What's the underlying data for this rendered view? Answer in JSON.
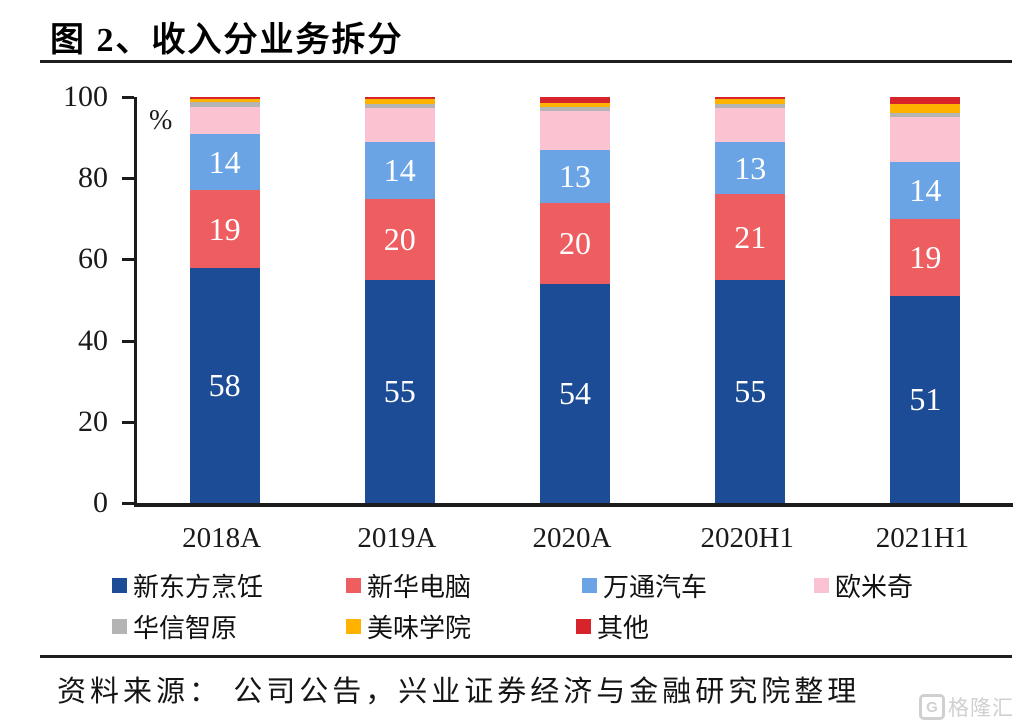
{
  "chart_data": {
    "type": "stacked-bar",
    "title": "图 2、收入分业务拆分",
    "unit_label": "%",
    "categories": [
      "2018A",
      "2019A",
      "2020A",
      "2020H1",
      "2021H1"
    ],
    "series": [
      {
        "name": "新东方烹饪",
        "color": "#1D4C96",
        "labeled": true,
        "values": [
          58,
          55,
          54,
          55,
          51
        ]
      },
      {
        "name": "新华电脑",
        "color": "#EE5D60",
        "labeled": true,
        "values": [
          19,
          20,
          20,
          21,
          19
        ]
      },
      {
        "name": "万通汽车",
        "color": "#6AA4E4",
        "labeled": true,
        "values": [
          14,
          14,
          13,
          13,
          14
        ]
      },
      {
        "name": "欧米奇",
        "color": "#FBC3D1",
        "labeled": false,
        "values": [
          6.6,
          8.3,
          9.6,
          8.3,
          11.2
        ]
      },
      {
        "name": "华信智原",
        "color": "#B4B4B4",
        "labeled": false,
        "values": [
          1.2,
          1.0,
          1.0,
          1.0,
          0.8
        ]
      },
      {
        "name": "美味学院",
        "color": "#FFB300",
        "labeled": false,
        "values": [
          0.7,
          1.2,
          1.0,
          1.2,
          2.4
        ]
      },
      {
        "name": "其他",
        "color": "#D7232A",
        "labeled": false,
        "values": [
          0.5,
          0.5,
          1.4,
          0.5,
          1.6
        ]
      }
    ],
    "ylim": [
      0,
      100
    ],
    "yticks": [
      0,
      20,
      40,
      60,
      80,
      100
    ],
    "grid": false,
    "legend_position": "bottom",
    "legend_rows": [
      [
        0,
        1,
        2,
        3
      ],
      [
        4,
        5,
        6
      ]
    ]
  },
  "footer": {
    "source": "资料来源： 公司公告，兴业证券经济与金融研究院整理",
    "watermark": "格隆汇"
  }
}
